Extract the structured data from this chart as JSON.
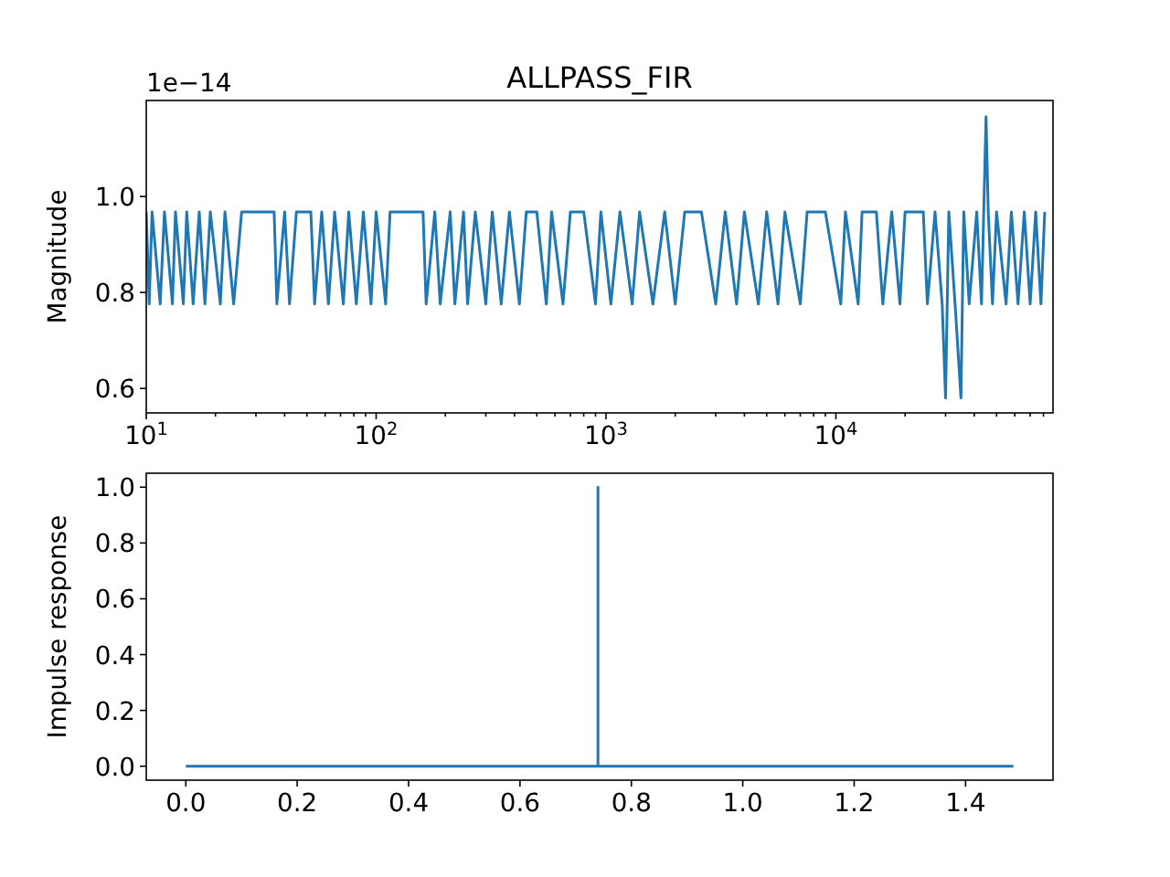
{
  "chart_data": [
    {
      "type": "line",
      "title": "ALLPASS_FIR",
      "ylabel": "Magnitude",
      "annotations": [
        "1e−14"
      ],
      "log": "x",
      "xlim": [
        10,
        88000
      ],
      "ylim": [
        0.549,
        1.2
      ],
      "xticks": [
        {
          "value": 10,
          "label": "10$^{1}$"
        },
        {
          "value": 20,
          "label": null
        },
        {
          "value": 30,
          "label": null
        },
        {
          "value": 40,
          "label": null
        },
        {
          "value": 50,
          "label": null
        },
        {
          "value": 60,
          "label": null
        },
        {
          "value": 70,
          "label": null
        },
        {
          "value": 80,
          "label": null
        },
        {
          "value": 90,
          "label": null
        },
        {
          "value": 100,
          "label": "10$^{2}$"
        },
        {
          "value": 200,
          "label": null
        },
        {
          "value": 300,
          "label": null
        },
        {
          "value": 400,
          "label": null
        },
        {
          "value": 500,
          "label": null
        },
        {
          "value": 600,
          "label": null
        },
        {
          "value": 700,
          "label": null
        },
        {
          "value": 800,
          "label": null
        },
        {
          "value": 900,
          "label": null
        },
        {
          "value": 1000,
          "label": "10$^{3}$"
        },
        {
          "value": 2000,
          "label": null
        },
        {
          "value": 3000,
          "label": null
        },
        {
          "value": 4000,
          "label": null
        },
        {
          "value": 5000,
          "label": null
        },
        {
          "value": 6000,
          "label": null
        },
        {
          "value": 7000,
          "label": null
        },
        {
          "value": 8000,
          "label": null
        },
        {
          "value": 9000,
          "label": null
        },
        {
          "value": 10000,
          "label": "10$^{4}$"
        },
        {
          "value": 20000,
          "label": null
        },
        {
          "value": 30000,
          "label": null
        },
        {
          "value": 40000,
          "label": null
        },
        {
          "value": 50000,
          "label": null
        },
        {
          "value": 60000,
          "label": null
        },
        {
          "value": 70000,
          "label": null
        },
        {
          "value": 80000,
          "label": null
        }
      ],
      "yticks": [
        {
          "value": 0.6,
          "label": "0.6"
        },
        {
          "value": 0.8,
          "label": "0.8"
        },
        {
          "value": 1.0,
          "label": "1.0"
        }
      ],
      "series": [
        {
          "color": "#1f77b4",
          "x": [
            10,
            10.3,
            10.6,
            11.5,
            12,
            13,
            13.4,
            14.5,
            15,
            16,
            17,
            18,
            19,
            21,
            22,
            24,
            26,
            30,
            36,
            37,
            40,
            42,
            45,
            52,
            54,
            58,
            62,
            66,
            72,
            76,
            82,
            88,
            95,
            100,
            110,
            115,
            130,
            160,
            165,
            180,
            190,
            210,
            220,
            240,
            250,
            270,
            300,
            320,
            350,
            380,
            420,
            450,
            500,
            550,
            580,
            650,
            700,
            800,
            900,
            950,
            1050,
            1150,
            1300,
            1400,
            1600,
            1800,
            2000,
            2200,
            2600,
            3000,
            3300,
            3700,
            4000,
            4600,
            5000,
            5600,
            6000,
            7000,
            7500,
            9000,
            10500,
            11000,
            12500,
            13000,
            15000,
            16000,
            17500,
            19000,
            20000,
            24000,
            25000,
            27000,
            29000,
            30000,
            31000,
            33000,
            35000,
            36000,
            38000,
            41000,
            43000,
            45000,
            46000,
            48000,
            50000,
            55000,
            58000,
            62000,
            66000,
            70000,
            74000,
            78000,
            81000
          ],
          "values": [
            0.968,
            0.776,
            0.968,
            0.776,
            0.968,
            0.776,
            0.968,
            0.776,
            0.968,
            0.776,
            0.968,
            0.776,
            0.968,
            0.776,
            0.968,
            0.776,
            0.968,
            0.968,
            0.968,
            0.776,
            0.968,
            0.776,
            0.968,
            0.968,
            0.776,
            0.968,
            0.776,
            0.968,
            0.776,
            0.968,
            0.776,
            0.968,
            0.776,
            0.968,
            0.776,
            0.968,
            0.968,
            0.968,
            0.776,
            0.968,
            0.776,
            0.968,
            0.776,
            0.968,
            0.776,
            0.968,
            0.776,
            0.968,
            0.776,
            0.968,
            0.776,
            0.968,
            0.968,
            0.776,
            0.968,
            0.776,
            0.968,
            0.968,
            0.776,
            0.968,
            0.776,
            0.968,
            0.776,
            0.968,
            0.776,
            0.968,
            0.776,
            0.968,
            0.968,
            0.776,
            0.968,
            0.776,
            0.968,
            0.776,
            0.968,
            0.776,
            0.968,
            0.776,
            0.968,
            0.968,
            0.776,
            0.968,
            0.776,
            0.968,
            0.968,
            0.776,
            0.968,
            0.776,
            0.968,
            0.968,
            0.776,
            0.968,
            0.776,
            0.58,
            0.968,
            0.776,
            0.58,
            0.968,
            0.776,
            0.968,
            0.776,
            1.166,
            0.968,
            0.776,
            0.968,
            0.776,
            0.968,
            0.776,
            0.968,
            0.776,
            0.968,
            0.776,
            0.968
          ]
        }
      ]
    },
    {
      "type": "line",
      "ylabel": "Impulse response",
      "xlim": [
        -0.071,
        1.557
      ],
      "ylim": [
        -0.05,
        1.05
      ],
      "xticks": [
        {
          "value": 0,
          "label": "0.0"
        },
        {
          "value": 0.2,
          "label": "0.2"
        },
        {
          "value": 0.4,
          "label": "0.4"
        },
        {
          "value": 0.6,
          "label": "0.6"
        },
        {
          "value": 0.8,
          "label": "0.8"
        },
        {
          "value": 1.0,
          "label": "1.0"
        },
        {
          "value": 1.2,
          "label": "1.2"
        },
        {
          "value": 1.4,
          "label": "1.4"
        }
      ],
      "yticks": [
        {
          "value": 0,
          "label": "0.0"
        },
        {
          "value": 0.2,
          "label": "0.2"
        },
        {
          "value": 0.4,
          "label": "0.4"
        },
        {
          "value": 0.6,
          "label": "0.6"
        },
        {
          "value": 0.8,
          "label": "0.8"
        },
        {
          "value": 1.0,
          "label": "1.0"
        }
      ],
      "series": [
        {
          "color": "#1f77b4",
          "x": [
            0,
            0.74,
            0.74,
            0.74,
            1.486
          ],
          "values": [
            0,
            0,
            1,
            0,
            0
          ]
        }
      ]
    }
  ]
}
